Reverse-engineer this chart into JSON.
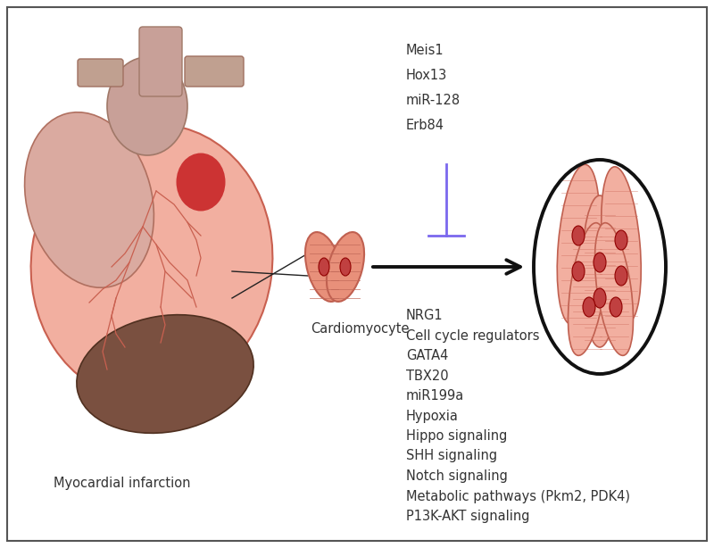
{
  "bg_color": "#ffffff",
  "border_color": "#555555",
  "inhibitor_labels": [
    "Meis1",
    "Hox13",
    "miR-128",
    "Erb84"
  ],
  "promoter_labels": [
    "NRG1",
    "Cell cycle regulators",
    "GATA4",
    "TBX20",
    "miR199a",
    "Hypoxia",
    "Hippo signaling",
    "SHH signaling",
    "Notch signaling",
    "Metabolic pathways (Pkm2, PDK4)",
    "P13K-AKT signaling"
  ],
  "inhibit_color": "#7B68EE",
  "arrow_color": "#111111",
  "text_color": "#333333",
  "font_size": 10.5,
  "heart_main": "#F2AFA0",
  "heart_edge": "#C96050",
  "heart_right": "#D4A090",
  "heart_dark": "#7A5040",
  "heart_vessels": "#C96050",
  "heart_red": "#CC3333",
  "cell_fill": "#E8907A",
  "cell_edge": "#C06050",
  "cell_striation": "#C06858",
  "nucleus_fill": "#C04040",
  "nucleus_edge": "#900000",
  "ellipse_fill": "#ffffff",
  "ellipse_edge": "#111111"
}
